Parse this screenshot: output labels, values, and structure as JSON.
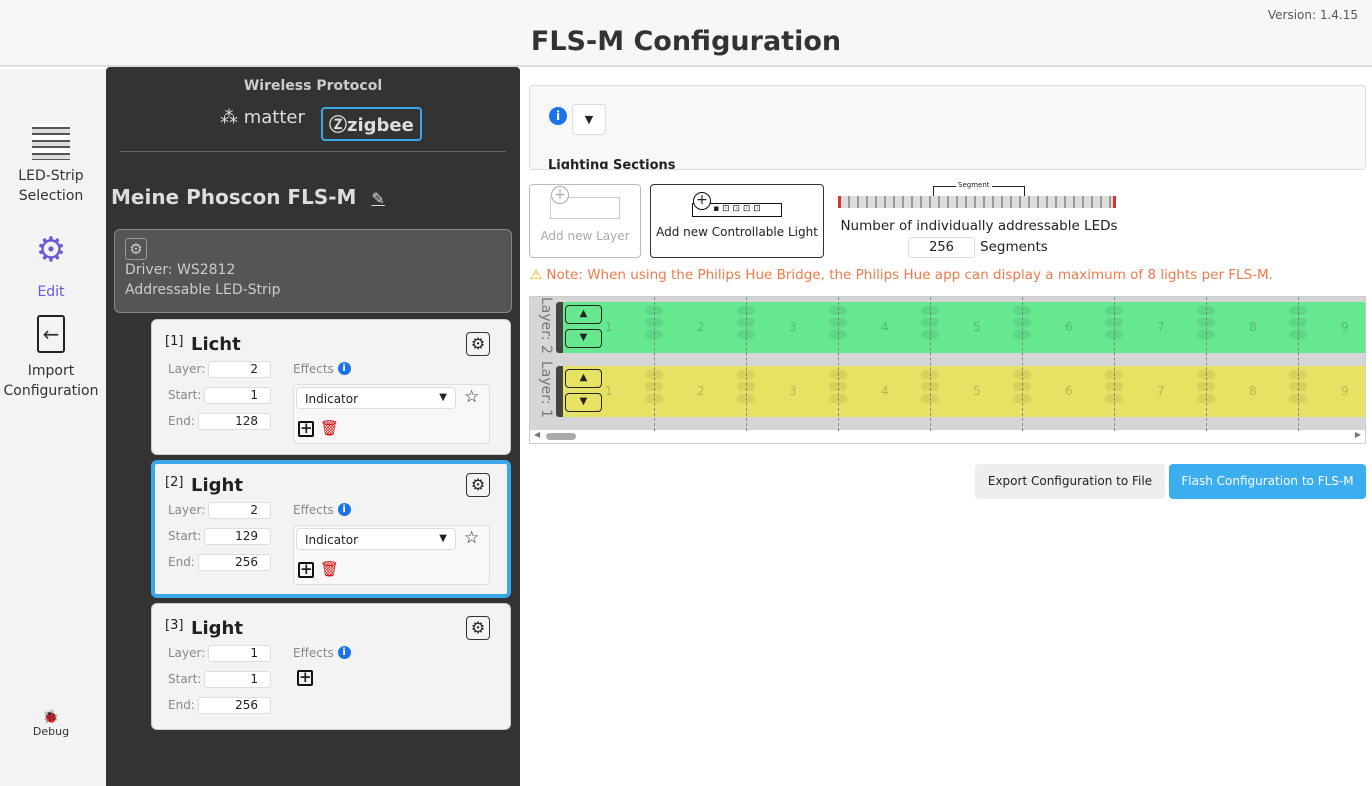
{
  "header": {
    "version": "Version: 1.4.15",
    "title": "FLS-M Configuration"
  },
  "nav": [
    {
      "label": "LED-Strip Selection",
      "icon": "led-strip-icon"
    },
    {
      "label": "Edit",
      "icon": "chip-gear-icon",
      "active": true
    },
    {
      "label": "Import Configuration",
      "icon": "file-import-icon"
    },
    {
      "label": "Debug",
      "icon": "bug-icon"
    }
  ],
  "protocol": {
    "heading": "Wireless Protocol",
    "options": [
      "matter",
      "zigbee"
    ],
    "selected": "zigbee"
  },
  "device": {
    "name": "Meine Phoscon FLS-M",
    "driver": "Driver: WS2812",
    "type": "Addressable LED-Strip"
  },
  "lights": [
    {
      "index": "[1]",
      "name": "Licht",
      "layer": "2",
      "start": "1",
      "end": "128",
      "effect": "Indicator"
    },
    {
      "index": "[2]",
      "name": "Light",
      "layer": "2",
      "start": "129",
      "end": "256",
      "effect": "Indicator"
    },
    {
      "index": "[3]",
      "name": "Light",
      "layer": "1",
      "start": "1",
      "end": "256",
      "effect": ""
    }
  ],
  "labels": {
    "layer": "Layer:",
    "start": "Start:",
    "end": "End:",
    "effects": "Effects"
  },
  "main": {
    "section_title": "Lighting Sections",
    "add_layer": "Add new Layer",
    "add_light": "Add new Controllable Light",
    "segment_caption": "Segment",
    "leds_label": "Number of individually addressable LEDs",
    "leds_value": "256",
    "segments_label": "Segments",
    "note": "Note: When using the Philips Hue Bridge, the Philips Hue app can display a maximum of 8 lights per FLS-M.",
    "warning_color": "#f0794a"
  },
  "layers": [
    {
      "label": "Layer: 2",
      "color": "#66e88e"
    },
    {
      "label": "Layer: 1",
      "color": "#e8e264"
    }
  ],
  "segment_numbers": [
    "1",
    "2",
    "3",
    "4",
    "5",
    "6",
    "7",
    "8",
    "9"
  ],
  "actions": {
    "export": "Export Configuration to File",
    "flash": "Flash Configuration to FLS-M"
  }
}
